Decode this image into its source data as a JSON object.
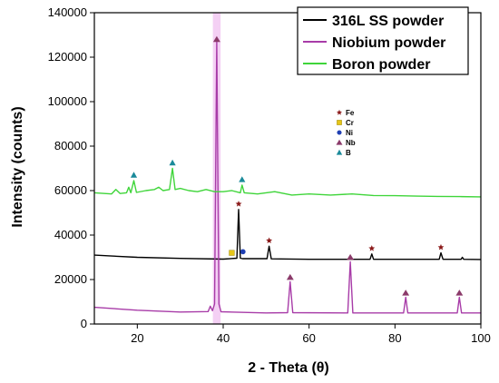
{
  "chart_data": {
    "type": "line",
    "title": "",
    "xlabel": "2 - Theta (θ)",
    "ylabel": "Intensity (counts)",
    "xlim": [
      10,
      100
    ],
    "ylim": [
      0,
      140000
    ],
    "x_ticks": [
      20,
      40,
      60,
      80,
      100
    ],
    "x_tick_labels": [
      "20",
      "40",
      "60",
      "80",
      "100"
    ],
    "y_ticks": [
      0,
      20000,
      40000,
      60000,
      80000,
      100000,
      120000,
      140000
    ],
    "y_tick_labels": [
      "0",
      "20000",
      "40000",
      "60000",
      "80000",
      "100000",
      "120000",
      "140000"
    ],
    "grid": false,
    "legend": {
      "placement": "top-right"
    },
    "colors": {
      "ss": "#000000",
      "nb": "#a83ca8",
      "b": "#3fd53a",
      "star": "#8b1a1a",
      "cr": "#e6c619",
      "ni": "#1f3fb3",
      "nb_tri": "#8b3a6a",
      "b_tri": "#1a8a9a"
    },
    "series": [
      {
        "name": "316L SS powder",
        "color": "#000000",
        "points": [
          [
            10,
            31000
          ],
          [
            20,
            30000
          ],
          [
            30,
            29500
          ],
          [
            40,
            29200
          ],
          [
            43.2,
            29600
          ],
          [
            43.6,
            51500
          ],
          [
            44.0,
            29600
          ],
          [
            44.5,
            29400
          ],
          [
            50.2,
            29400
          ],
          [
            50.7,
            35000
          ],
          [
            51.2,
            29300
          ],
          [
            60,
            29100
          ],
          [
            74.2,
            29100
          ],
          [
            74.6,
            31500
          ],
          [
            75.0,
            29100
          ],
          [
            90.3,
            29100
          ],
          [
            90.7,
            32000
          ],
          [
            91.2,
            29100
          ],
          [
            95.4,
            29100
          ],
          [
            95.7,
            30000
          ],
          [
            96.0,
            29100
          ],
          [
            100,
            29000
          ]
        ]
      },
      {
        "name": "Niobium powder",
        "color": "#a83ca8",
        "points": [
          [
            10,
            7500
          ],
          [
            20,
            6200
          ],
          [
            30,
            5400
          ],
          [
            36.5,
            5600
          ],
          [
            37.0,
            8000
          ],
          [
            37.5,
            6000
          ],
          [
            38.0,
            9000
          ],
          [
            38.5,
            127000
          ],
          [
            39.0,
            9000
          ],
          [
            39.5,
            5500
          ],
          [
            50,
            5000
          ],
          [
            55.0,
            5100
          ],
          [
            55.6,
            19000
          ],
          [
            56.2,
            5100
          ],
          [
            69.0,
            5000
          ],
          [
            69.6,
            28000
          ],
          [
            70.2,
            5000
          ],
          [
            82.0,
            5000
          ],
          [
            82.5,
            12000
          ],
          [
            83.0,
            5000
          ],
          [
            94.5,
            5000
          ],
          [
            95.0,
            12000
          ],
          [
            95.5,
            5000
          ],
          [
            100,
            5000
          ]
        ]
      },
      {
        "name": "Boron powder",
        "color": "#3fd53a",
        "points": [
          [
            10,
            59000
          ],
          [
            14,
            58500
          ],
          [
            15,
            60500
          ],
          [
            16,
            58700
          ],
          [
            17.5,
            59000
          ],
          [
            18,
            61500
          ],
          [
            18.5,
            59000
          ],
          [
            19.2,
            64500
          ],
          [
            19.8,
            59200
          ],
          [
            22,
            60000
          ],
          [
            24,
            60500
          ],
          [
            25,
            61500
          ],
          [
            26,
            60000
          ],
          [
            27.5,
            60500
          ],
          [
            28.2,
            70000
          ],
          [
            28.8,
            60500
          ],
          [
            30,
            61000
          ],
          [
            32,
            60000
          ],
          [
            34,
            59500
          ],
          [
            36,
            60500
          ],
          [
            38,
            59500
          ],
          [
            40,
            59500
          ],
          [
            42,
            60000
          ],
          [
            44,
            59000
          ],
          [
            44.4,
            62500
          ],
          [
            44.9,
            59000
          ],
          [
            48,
            58500
          ],
          [
            52,
            59500
          ],
          [
            56,
            58000
          ],
          [
            60,
            58500
          ],
          [
            65,
            58000
          ],
          [
            70,
            58500
          ],
          [
            75,
            57800
          ],
          [
            80,
            57700
          ],
          [
            85,
            57500
          ],
          [
            90,
            57400
          ],
          [
            95,
            57300
          ],
          [
            100,
            57200
          ]
        ]
      }
    ],
    "phase_markers": [
      {
        "phase": "Nb",
        "x": 38.5,
        "y": 128000
      },
      {
        "phase": "Nb",
        "x": 55.6,
        "y": 21000
      },
      {
        "phase": "Nb",
        "x": 69.6,
        "y": 30000
      },
      {
        "phase": "Nb",
        "x": 82.5,
        "y": 14000
      },
      {
        "phase": "Nb",
        "x": 95.0,
        "y": 14000
      },
      {
        "phase": "Fe",
        "x": 43.6,
        "y": 54000
      },
      {
        "phase": "Fe",
        "x": 50.7,
        "y": 37500
      },
      {
        "phase": "Fe",
        "x": 74.6,
        "y": 34000
      },
      {
        "phase": "Fe",
        "x": 90.7,
        "y": 34500
      },
      {
        "phase": "Cr",
        "x": 42.0,
        "y": 32000
      },
      {
        "phase": "Ni",
        "x": 44.6,
        "y": 32500
      },
      {
        "phase": "B",
        "x": 19.2,
        "y": 67000
      },
      {
        "phase": "B",
        "x": 28.2,
        "y": 72500
      },
      {
        "phase": "B",
        "x": 44.4,
        "y": 65000
      }
    ],
    "phase_legend": [
      {
        "phase": "Fe",
        "label": "Fe"
      },
      {
        "phase": "Cr",
        "label": "Cr"
      },
      {
        "phase": "Ni",
        "label": "Ni"
      },
      {
        "phase": "Nb",
        "label": "Nb"
      },
      {
        "phase": "B",
        "label": "B"
      }
    ]
  }
}
